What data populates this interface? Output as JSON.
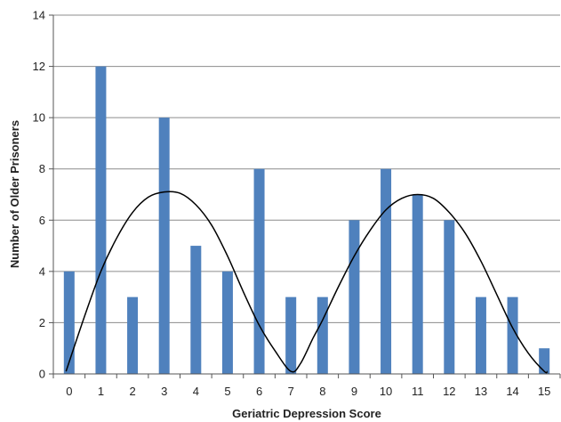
{
  "chart_data": {
    "type": "bar",
    "title": "",
    "xlabel": "Geriatric Depression Score",
    "ylabel": "Number of Older Prisoners",
    "categories": [
      "0",
      "1",
      "2",
      "3",
      "4",
      "5",
      "6",
      "7",
      "8",
      "9",
      "10",
      "11",
      "12",
      "13",
      "14",
      "15"
    ],
    "values": [
      4,
      12,
      3,
      10,
      5,
      4,
      8,
      3,
      3,
      6,
      8,
      7,
      6,
      3,
      3,
      1
    ],
    "ylim": [
      0,
      14
    ],
    "yticks": [
      "0",
      "2",
      "4",
      "6",
      "8",
      "10",
      "12",
      "14"
    ],
    "grid": "horizontal",
    "legend": "none",
    "bar_color": "#4f81bd",
    "curve": {
      "type": "line",
      "color": "#000000",
      "x": [
        -0.1,
        0.5,
        1,
        1.5,
        2,
        2.5,
        3,
        3.5,
        4,
        4.5,
        5,
        5.5,
        6,
        6.5,
        7,
        7.3,
        7.7,
        8,
        8.5,
        9,
        9.5,
        10,
        10.5,
        11,
        11.5,
        12,
        12.5,
        13,
        13.5,
        14,
        14.5,
        15,
        15.1
      ],
      "y": [
        0.1,
        2.3,
        4.0,
        5.3,
        6.3,
        6.9,
        7.1,
        7.05,
        6.6,
        5.8,
        4.6,
        3.2,
        1.9,
        0.9,
        0.1,
        0.4,
        1.4,
        2.1,
        3.4,
        4.6,
        5.6,
        6.4,
        6.85,
        7.0,
        6.85,
        6.3,
        5.5,
        4.4,
        3.1,
        1.8,
        0.8,
        0.1,
        0.1
      ]
    }
  }
}
